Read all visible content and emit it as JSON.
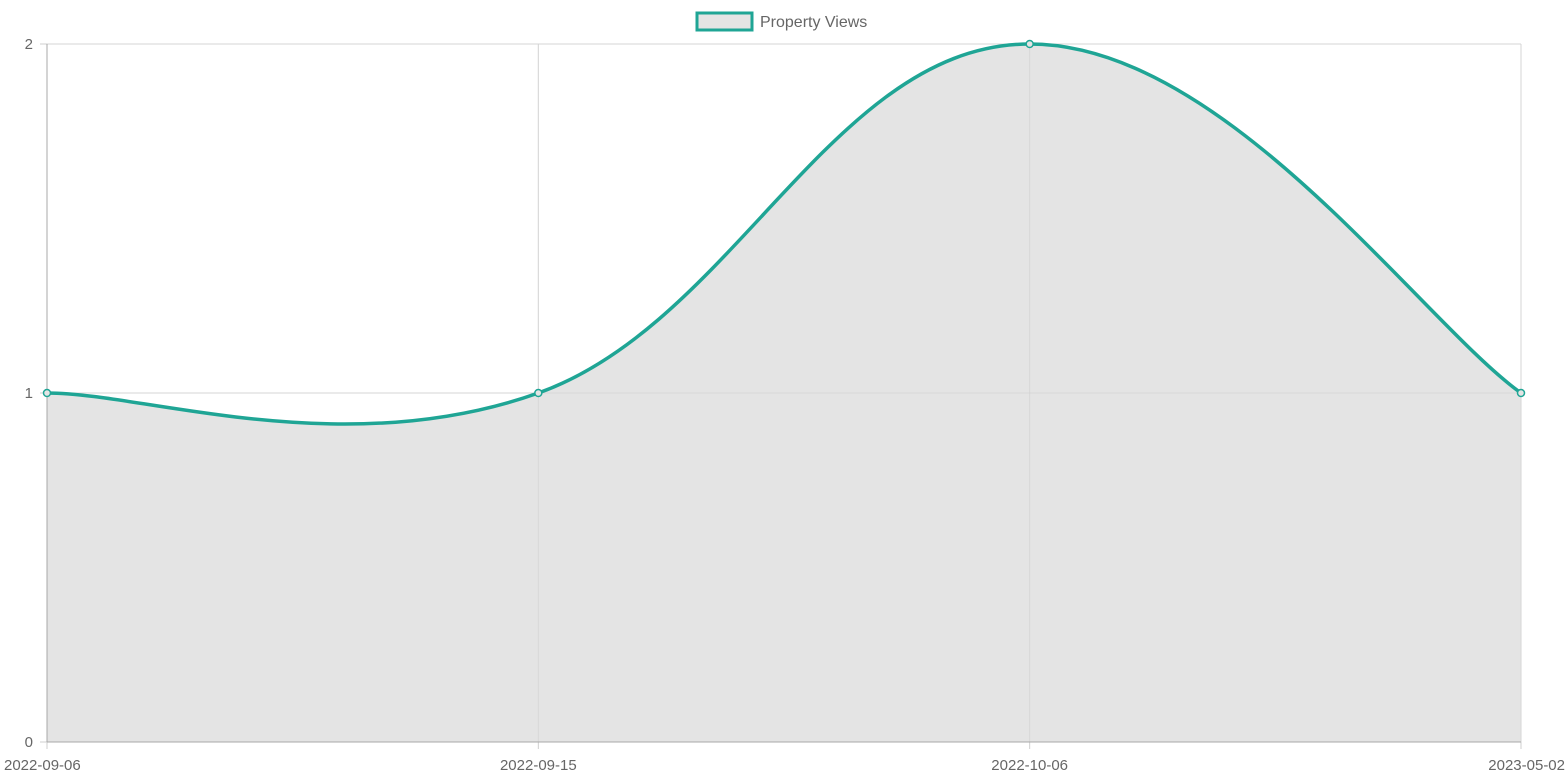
{
  "chart_data": {
    "type": "line",
    "categories": [
      "2022-09-06",
      "2022-09-15",
      "2022-10-06",
      "2023-05-02"
    ],
    "series": [
      {
        "name": "Property Views",
        "values": [
          1,
          1,
          2,
          1
        ],
        "line_color": "#1fa595",
        "fill_color": "#e4e4e4"
      }
    ],
    "ylim": [
      0,
      2
    ],
    "yticks": [
      0,
      1,
      2
    ],
    "grid": true,
    "curve": "smooth",
    "fill": true,
    "legend_position": "top-center",
    "title": "",
    "xlabel": "",
    "ylabel": ""
  }
}
